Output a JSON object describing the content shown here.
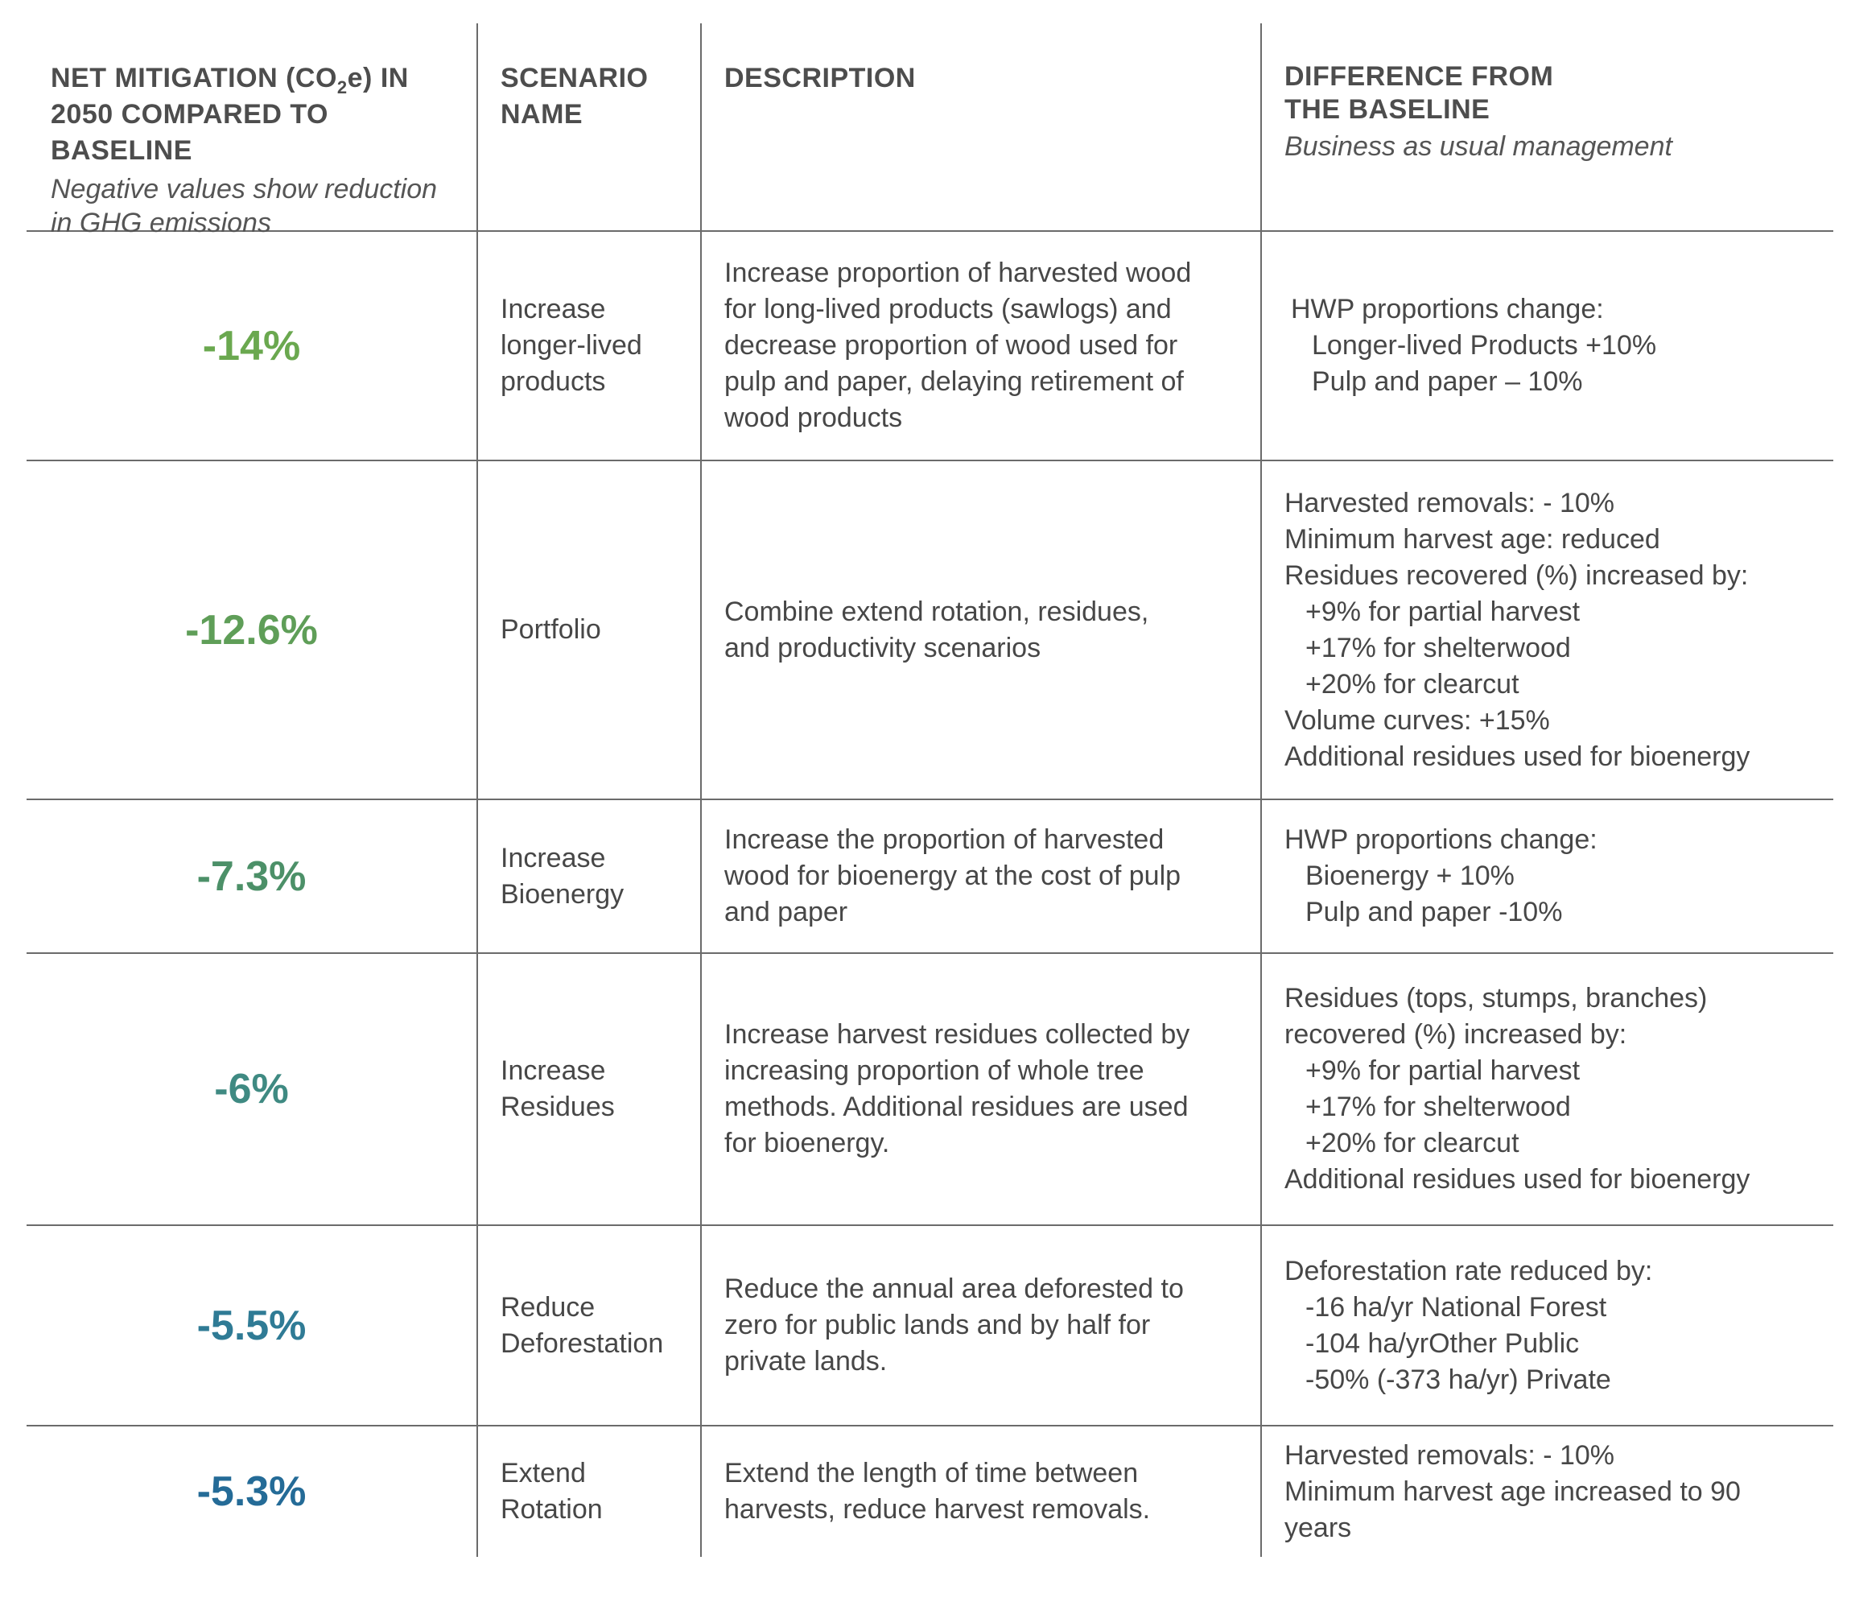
{
  "header": {
    "col1_title_part1": "NET MITIGATION (CO",
    "col1_title_sub": "2",
    "col1_title_part2": "e) IN\n2050 COMPARED TO BASELINE",
    "col1_subtitle": "Negative values show reduction\nin GHG emissions",
    "col2_title": "SCENARIO\nNAME",
    "col3_title": "DESCRIPTION",
    "col4_title": "DIFFERENCE FROM\nTHE BASELINE",
    "col4_subtitle": "Business as usual management"
  },
  "colors": {
    "value_1": "#6aa84f",
    "value_2": "#5f9e58",
    "value_3": "#4c9068",
    "value_4": "#3f8a82",
    "value_5": "#2f7b95",
    "value_6": "#246b97"
  },
  "rows": [
    {
      "value": "-14%",
      "name": "Increase\nlonger-lived\nproducts",
      "description": "Increase proportion of harvested wood\nfor long-lived products (sawlogs) and\ndecrease proportion of wood used for\npulp and paper, delaying retirement of\nwood products",
      "difference": [
        {
          "text": "HWP proportions change:",
          "indent": false
        },
        {
          "text": "Longer-lived Products +10%",
          "indent": true
        },
        {
          "text": "Pulp and paper – 10%",
          "indent": true
        }
      ]
    },
    {
      "value": "-12.6%",
      "name": "Portfolio",
      "description": "Combine extend rotation, residues,\nand productivity scenarios",
      "difference": [
        {
          "text": "Harvested removals: - 10%",
          "indent": false
        },
        {
          "text": "Minimum harvest age: reduced",
          "indent": false
        },
        {
          "text": "Residues recovered (%) increased by:",
          "indent": false
        },
        {
          "text": "+9% for partial harvest",
          "indent": true
        },
        {
          "text": "+17% for shelterwood",
          "indent": true
        },
        {
          "text": "+20% for clearcut",
          "indent": true
        },
        {
          "text": "Volume curves: +15%",
          "indent": false
        },
        {
          "text": "Additional residues used for bioenergy",
          "indent": false
        }
      ]
    },
    {
      "value": "-7.3%",
      "name": "Increase\nBioenergy",
      "description": "Increase the proportion of harvested\nwood for bioenergy at the cost of pulp\nand paper",
      "difference": [
        {
          "text": "HWP proportions change:",
          "indent": false
        },
        {
          "text": "Bioenergy + 10%",
          "indent": true
        },
        {
          "text": "Pulp and paper -10%",
          "indent": true
        }
      ]
    },
    {
      "value": "-6%",
      "name": "Increase\nResidues",
      "description": "Increase harvest residues collected by\nincreasing proportion of whole tree\nmethods. Additional residues are used\nfor bioenergy.",
      "difference": [
        {
          "text": "Residues (tops, stumps, branches)",
          "indent": false
        },
        {
          "text": "recovered (%) increased by:",
          "indent": false
        },
        {
          "text": "+9% for partial harvest",
          "indent": true
        },
        {
          "text": "+17% for shelterwood",
          "indent": true
        },
        {
          "text": "+20% for clearcut",
          "indent": true
        },
        {
          "text": "Additional residues used for bioenergy",
          "indent": false
        }
      ]
    },
    {
      "value": "-5.5%",
      "name": "Reduce\nDeforestation",
      "description": "Reduce the annual area deforested to\nzero for public lands and by half for\nprivate lands.",
      "difference": [
        {
          "text": "Deforestation rate reduced by:",
          "indent": false
        },
        {
          "text": "-16 ha/yr National Forest",
          "indent": true
        },
        {
          "text": "-104 ha/yrOther Public",
          "indent": true
        },
        {
          "text": "-50% (-373 ha/yr) Private",
          "indent": true
        }
      ]
    },
    {
      "value": "-5.3%",
      "name": "Extend\nRotation",
      "description": "Extend the length of time between\nharvests, reduce harvest removals.",
      "difference": [
        {
          "text": "Harvested removals: - 10%",
          "indent": false
        },
        {
          "text": "Minimum harvest age increased to 90",
          "indent": false
        },
        {
          "text": "years",
          "indent": false
        }
      ]
    }
  ]
}
